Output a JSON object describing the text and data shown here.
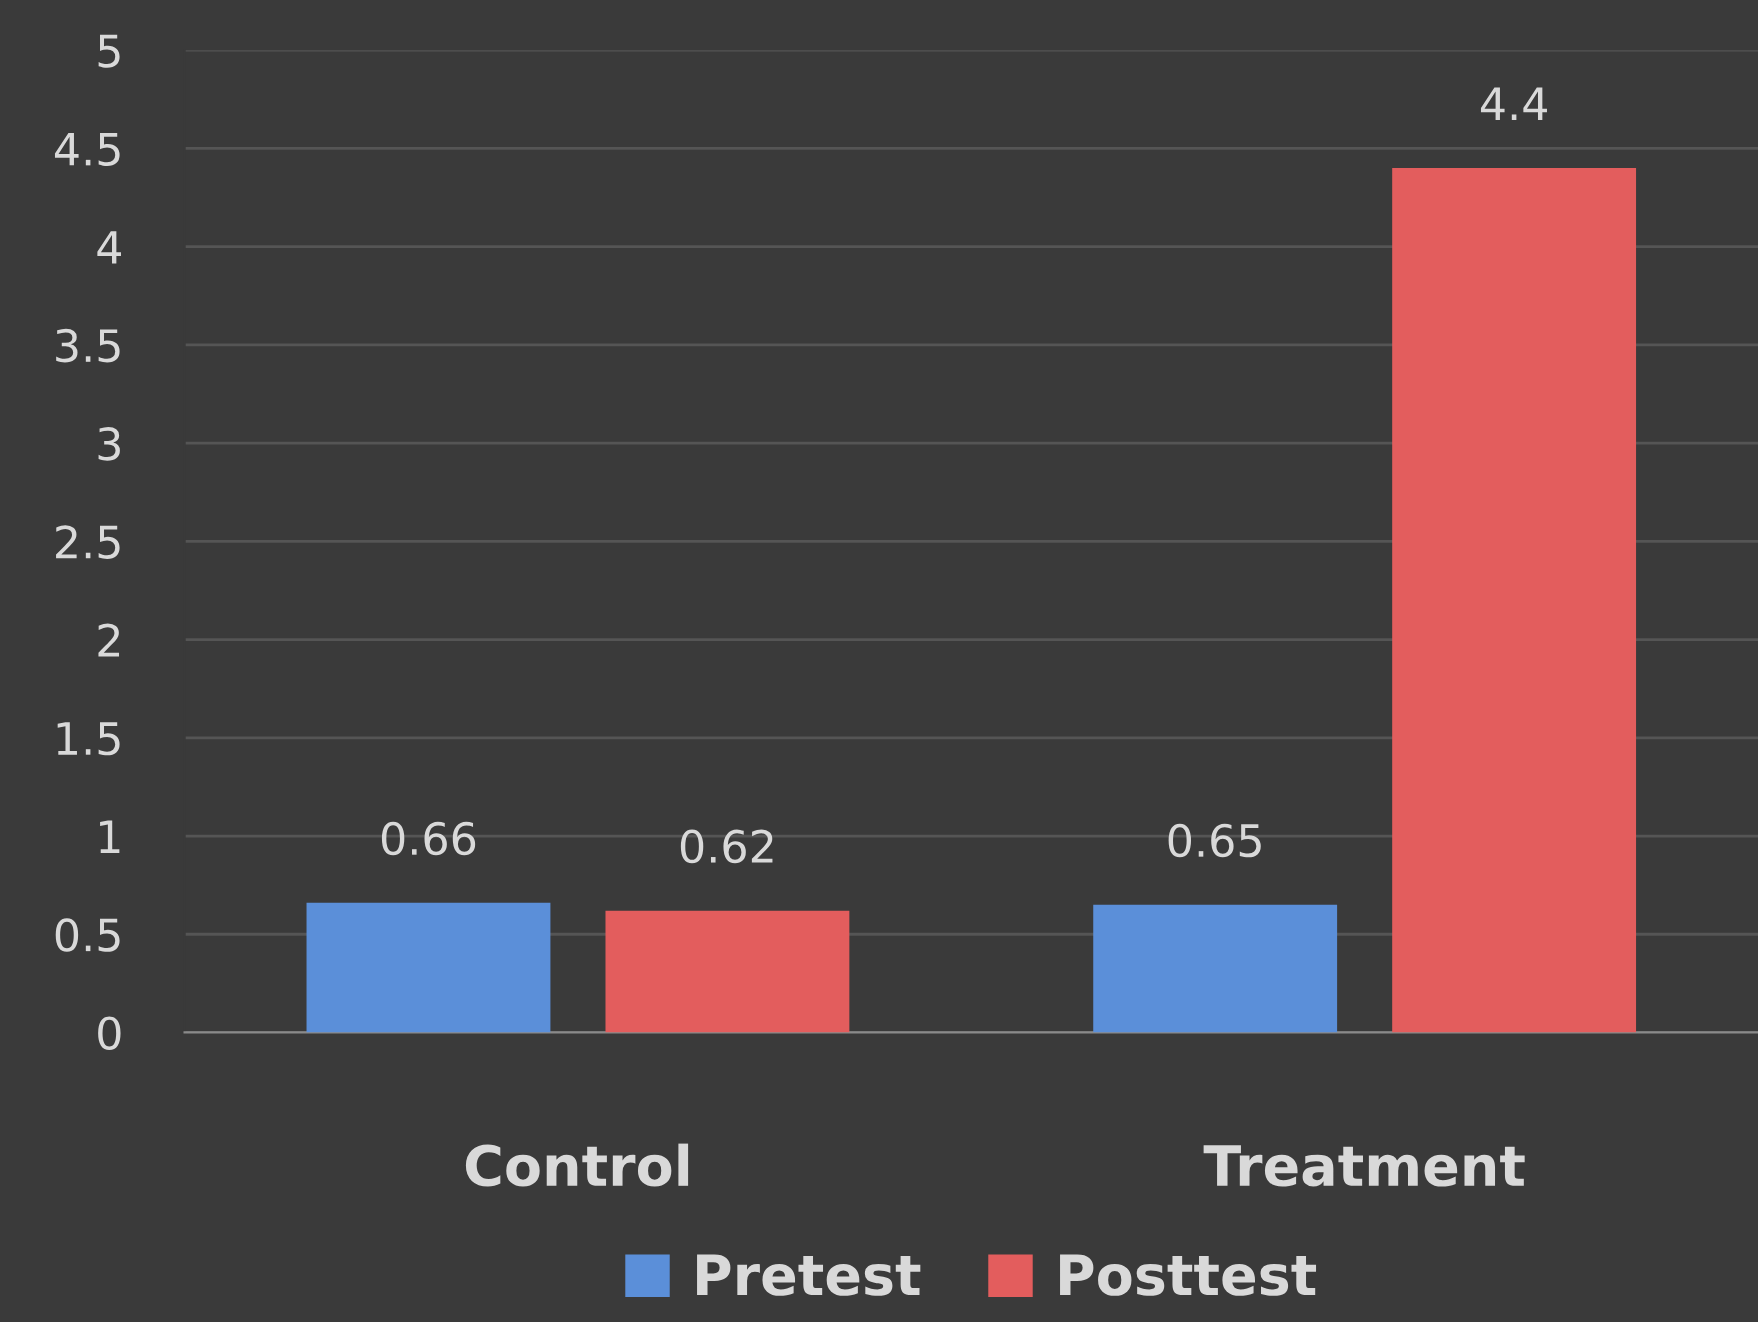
{
  "chart_data": {
    "type": "bar",
    "categories": [
      "Control",
      "Treatment"
    ],
    "series": [
      {
        "name": "Pretest",
        "color": "#5b8fd9",
        "values": [
          0.66,
          0.65
        ]
      },
      {
        "name": "Posttest",
        "color": "#e35d5d",
        "values": [
          0.62,
          4.4
        ]
      }
    ],
    "ylim": [
      0,
      5
    ],
    "yticks": [
      0,
      0.5,
      1,
      1.5,
      2,
      2.5,
      3,
      3.5,
      4,
      4.5,
      5
    ],
    "grid": "y",
    "legend": "bottom",
    "data_labels": true
  }
}
